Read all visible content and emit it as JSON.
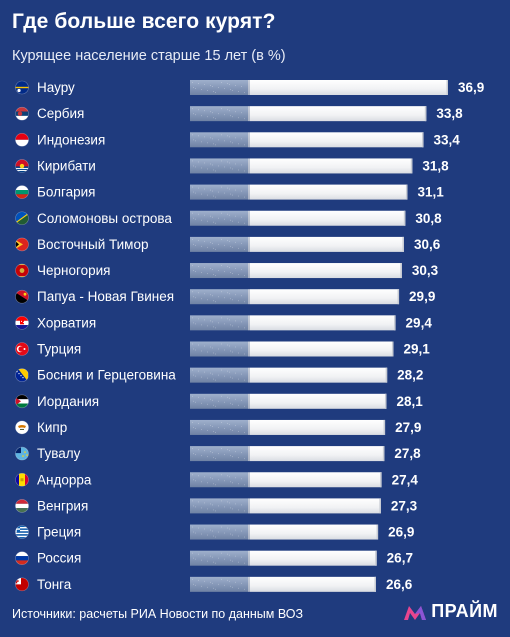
{
  "header": {
    "title": "Где больше всего курят?",
    "subtitle": "Курящее население старше 15 лет (в %)"
  },
  "chart_data": {
    "type": "bar",
    "orientation": "horizontal",
    "categories": [
      "Науру",
      "Сербия",
      "Индонезия",
      "Кирибати",
      "Болгария",
      "Соломоновы острова",
      "Восточный Тимор",
      "Черногория",
      "Папуа - Новая Гвинея",
      "Хорватия",
      "Турция",
      "Босния и Герцеговина",
      "Иордания",
      "Кипр",
      "Тувалу",
      "Андорра",
      "Венгрия",
      "Греция",
      "Россия",
      "Тонга"
    ],
    "values": [
      36.9,
      33.8,
      33.4,
      31.8,
      31.1,
      30.8,
      30.6,
      30.3,
      29.9,
      29.4,
      29.1,
      28.2,
      28.1,
      27.9,
      27.8,
      27.4,
      27.3,
      26.9,
      26.7,
      26.6
    ],
    "value_labels": [
      "36,9",
      "33,8",
      "33,4",
      "31,8",
      "31,1",
      "30,8",
      "30,6",
      "30,3",
      "29,9",
      "29,4",
      "29,1",
      "28,2",
      "28,1",
      "27,9",
      "27,8",
      "27,4",
      "27,3",
      "26,9",
      "26,7",
      "26,6"
    ],
    "flags": [
      "nauru-flag-icon",
      "serbia-flag-icon",
      "indonesia-flag-icon",
      "kiribati-flag-icon",
      "bulgaria-flag-icon",
      "solomon-islands-flag-icon",
      "east-timor-flag-icon",
      "montenegro-flag-icon",
      "papua-new-guinea-flag-icon",
      "croatia-flag-icon",
      "turkey-flag-icon",
      "bosnia-flag-icon",
      "jordan-flag-icon",
      "cyprus-flag-icon",
      "tuvalu-flag-icon",
      "andorra-flag-icon",
      "hungary-flag-icon",
      "greece-flag-icon",
      "russia-flag-icon",
      "tonga-flag-icon"
    ],
    "xlim": [
      0,
      36.9
    ],
    "grid": false,
    "bar_style": "cigarette",
    "colors": {
      "background": "#1f3b7e",
      "filter": "#8a9bb8",
      "paper": "#f4f4f5"
    }
  },
  "footer": {
    "source": "Источники: расчеты РИА Новости по данным ВОЗ",
    "logo_text": "ПРАЙМ"
  }
}
